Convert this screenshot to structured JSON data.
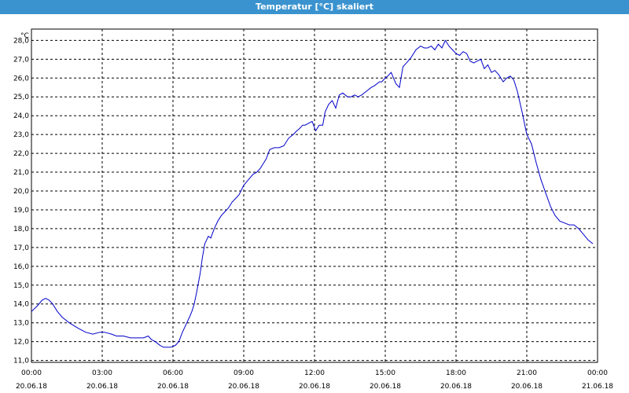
{
  "window": {
    "title": "Temperatur [°C] skaliert"
  },
  "chart_data": {
    "type": "line",
    "title": "Temperatur [°C] skaliert",
    "y_unit": "°C",
    "ylim": [
      10.9,
      28.6
    ],
    "y_ticks": [
      "11,0",
      "12,0",
      "13,0",
      "14,0",
      "15,0",
      "16,0",
      "17,0",
      "18,0",
      "19,0",
      "20,0",
      "21,0",
      "22,0",
      "23,0",
      "24,0",
      "25,0",
      "26,0",
      "27,0",
      "28,0"
    ],
    "x_range_hours": [
      0,
      24
    ],
    "x_ticks": [
      {
        "time": "00:00",
        "date": "20.06.18"
      },
      {
        "time": "03:00",
        "date": "20.06.18"
      },
      {
        "time": "06:00",
        "date": "20.06.18"
      },
      {
        "time": "09:00",
        "date": "20.06.18"
      },
      {
        "time": "12:00",
        "date": "20.06.18"
      },
      {
        "time": "15:00",
        "date": "20.06.18"
      },
      {
        "time": "18:00",
        "date": "20.06.18"
      },
      {
        "time": "21:00",
        "date": "20.06.18"
      },
      {
        "time": "00:00",
        "date": "21.06.18"
      }
    ],
    "grid": true,
    "line_color": "#0000cc",
    "series": [
      {
        "x": [
          0.0,
          0.25,
          0.45,
          0.6,
          0.75,
          0.9,
          1.1,
          1.3,
          1.6,
          2.0,
          2.3,
          2.6,
          2.9,
          3.1,
          3.4,
          3.6,
          3.9,
          4.2,
          4.4,
          4.6,
          4.75,
          4.95,
          5.1,
          5.25,
          5.45,
          5.6,
          5.75,
          5.9,
          6.1,
          6.25,
          6.4,
          6.55,
          6.7,
          6.8,
          6.9,
          7.0,
          7.15,
          7.25,
          7.35,
          7.5,
          7.6,
          7.75,
          7.9,
          8.05,
          8.2,
          8.35,
          8.5,
          8.65,
          8.8,
          9.0,
          9.2,
          9.4,
          9.55,
          9.7,
          9.8,
          9.95,
          10.1,
          10.3,
          10.5,
          10.7,
          10.9,
          11.1,
          11.25,
          11.35,
          11.5,
          11.6,
          11.75,
          11.9,
          12.05,
          12.2,
          12.35,
          12.45,
          12.6,
          12.75,
          12.9,
          13.05,
          13.2,
          13.4,
          13.55,
          13.7,
          13.85,
          14.0,
          14.2,
          14.4,
          14.55,
          14.75,
          14.85,
          15.0,
          15.1,
          15.25,
          15.45,
          15.6,
          15.75,
          15.9,
          16.1,
          16.3,
          16.5,
          16.65,
          16.8,
          16.95,
          17.1,
          17.25,
          17.4,
          17.55,
          17.7,
          17.85,
          18.0,
          18.15,
          18.3,
          18.45,
          18.6,
          18.75,
          18.9,
          19.05,
          19.2,
          19.35,
          19.5,
          19.65,
          19.8,
          20.0,
          20.15,
          20.3,
          20.45,
          20.6,
          20.8,
          21.0,
          21.2,
          21.4,
          21.6,
          21.8,
          22.0,
          22.2,
          22.4,
          22.6,
          22.8,
          23.0,
          23.2,
          23.4,
          23.6,
          23.8
        ],
        "y": [
          13.6,
          13.9,
          14.2,
          14.3,
          14.2,
          14.0,
          13.6,
          13.3,
          13.0,
          12.7,
          12.5,
          12.4,
          12.5,
          12.5,
          12.4,
          12.3,
          12.3,
          12.2,
          12.2,
          12.2,
          12.2,
          12.3,
          12.1,
          12.0,
          11.8,
          11.7,
          11.7,
          11.7,
          11.8,
          12.0,
          12.5,
          12.9,
          13.3,
          13.6,
          14.0,
          14.6,
          15.6,
          16.5,
          17.2,
          17.6,
          17.5,
          18.0,
          18.4,
          18.7,
          18.9,
          19.1,
          19.4,
          19.6,
          19.8,
          20.3,
          20.6,
          20.9,
          21.0,
          21.2,
          21.4,
          21.7,
          22.2,
          22.3,
          22.3,
          22.4,
          22.8,
          23.0,
          23.2,
          23.3,
          23.5,
          23.5,
          23.6,
          23.7,
          23.2,
          23.5,
          23.5,
          24.2,
          24.6,
          24.8,
          24.4,
          25.1,
          25.2,
          25.0,
          25.0,
          25.1,
          25.0,
          25.1,
          25.3,
          25.5,
          25.6,
          25.8,
          25.8,
          26.0,
          26.1,
          26.3,
          25.7,
          25.5,
          26.6,
          26.8,
          27.1,
          27.5,
          27.7,
          27.6,
          27.6,
          27.7,
          27.5,
          27.8,
          27.6,
          28.0,
          27.7,
          27.5,
          27.3,
          27.2,
          27.4,
          27.3,
          26.9,
          26.8,
          26.9,
          27.0,
          26.5,
          26.7,
          26.3,
          26.4,
          26.2,
          25.8,
          26.0,
          26.1,
          25.9,
          25.3,
          24.2,
          23.0,
          22.5,
          21.5,
          20.6,
          19.9,
          19.2,
          18.7,
          18.4,
          18.3,
          18.2,
          18.2,
          18.0,
          17.7,
          17.4,
          17.2
        ]
      }
    ]
  }
}
